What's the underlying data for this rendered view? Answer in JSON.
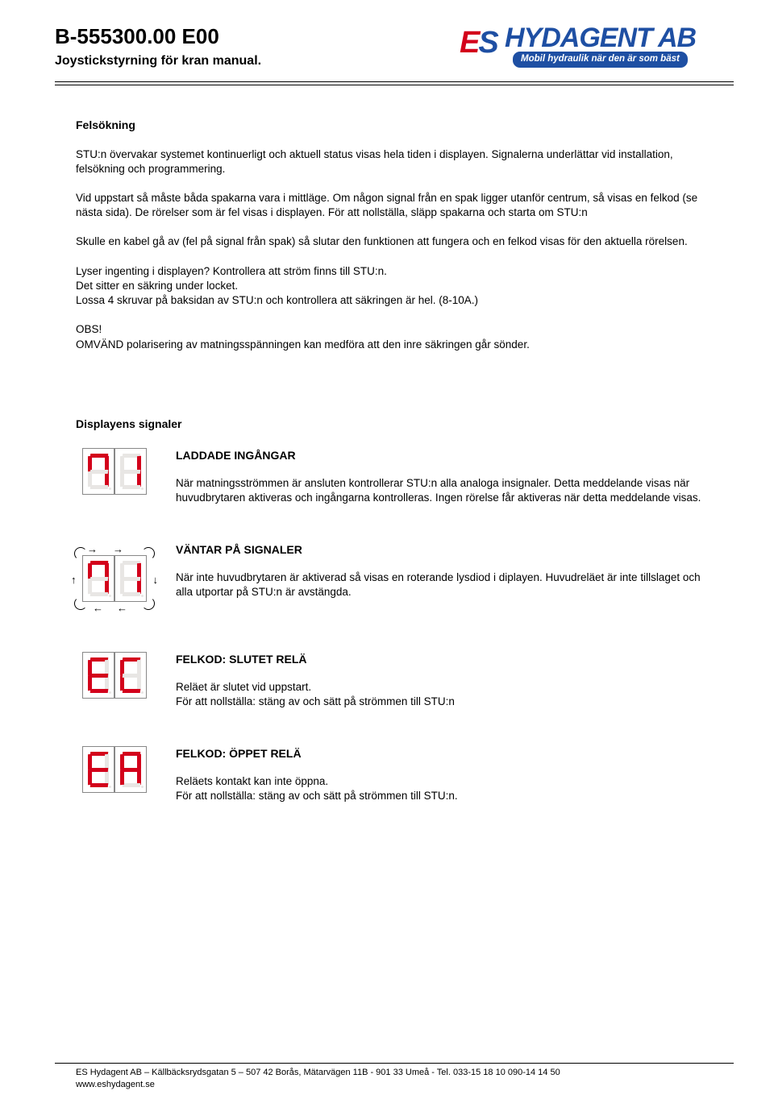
{
  "header": {
    "doc_id": "B-555300.00 E00",
    "subtitle": "Joystickstyrning för kran manual.",
    "logo_brand": "HYDAGENT AB",
    "logo_prefix_e": "E",
    "logo_prefix_s": "S",
    "logo_tagline": "Mobil hydraulik när den är som bäst"
  },
  "section1": {
    "title": "Felsökning",
    "p1": "STU:n övervakar systemet kontinuerligt och aktuell status visas hela tiden i displayen. Signalerna underlättar vid installation, felsökning och programmering.",
    "p2": "Vid uppstart så måste båda spakarna vara i mittläge. Om någon signal från en spak ligger utanför centrum, så visas en felkod (se nästa sida). De rörelser som är fel visas i displayen. För att nollställa, släpp spakarna och starta om STU:n",
    "p3": "Skulle en kabel gå av (fel på signal från spak) så slutar den funktionen att fungera och en felkod visas för den aktuella rörelsen.",
    "p4": "Lyser ingenting i displayen? Kontrollera att ström finns till STU:n.\nDet sitter en säkring under locket.\nLossa 4 skruvar på baksidan av STU:n och kontrollera att säkringen är hel. (8-10A.)",
    "p5": "OBS!\nOMVÄND polarisering av matningsspänningen kan medföra att den inre säkringen går sönder."
  },
  "section2": {
    "title": "Displayens signaler",
    "items": [
      {
        "heading": "LADDADE INGÅNGAR",
        "desc": "När matningsströmmen är ansluten kontrollerar STU:n alla analoga insignaler. Detta meddelande visas när huvudbrytaren aktiveras och ingångarna kontrolleras.  Ingen rörelse får aktiveras när detta meddelande visas.",
        "digits": [
          {
            "a": true,
            "b": true,
            "c": true,
            "d": false,
            "e": false,
            "f": true,
            "g": false
          },
          {
            "a": false,
            "b": true,
            "c": true,
            "d": false,
            "e": false,
            "f": false,
            "g": false
          }
        ],
        "arrows": false
      },
      {
        "heading": "VÄNTAR PÅ SIGNALER",
        "desc": "När inte huvudbrytaren är aktiverad så visas en roterande lysdiod i diplayen. Huvudreläet är inte tillslaget och alla utportar på STU:n är avstängda.",
        "digits": [
          {
            "a": true,
            "b": true,
            "c": true,
            "d": false,
            "e": false,
            "f": true,
            "g": false
          },
          {
            "a": false,
            "b": true,
            "c": true,
            "d": false,
            "e": false,
            "f": false,
            "g": false
          }
        ],
        "arrows": true
      },
      {
        "heading": "FELKOD: SLUTET RELÄ",
        "desc": "Reläet är slutet vid uppstart.\nFör att nollställa: stäng av och sätt på strömmen till STU:n",
        "digits": [
          {
            "a": true,
            "b": false,
            "c": false,
            "d": true,
            "e": true,
            "f": true,
            "g": true
          },
          {
            "a": true,
            "b": false,
            "c": false,
            "d": true,
            "e": true,
            "f": true,
            "g": false
          }
        ],
        "arrows": false
      },
      {
        "heading": "FELKOD: ÖPPET RELÄ",
        "desc": "Reläets kontakt kan inte öppna.\n För att nollställa: stäng av och sätt på strömmen till STU:n.",
        "digits": [
          {
            "a": true,
            "b": false,
            "c": false,
            "d": true,
            "e": true,
            "f": true,
            "g": true
          },
          {
            "a": true,
            "b": true,
            "c": true,
            "d": false,
            "e": true,
            "f": true,
            "g": true
          }
        ],
        "arrows": false
      }
    ]
  },
  "footer": {
    "line1": "ES Hydagent AB – Källbäcksrydsgatan 5 – 507 42 Borås, Mätarvägen 11B - 901 33 Umeå - Tel. 033-15 18 10   090-14 14 50",
    "line2": "www.eshydagent.se"
  },
  "colors": {
    "brand_blue": "#1e4fa3",
    "brand_red": "#d3001b",
    "seg_off": "#e8e6e4",
    "text": "#000000",
    "bg": "#ffffff"
  }
}
